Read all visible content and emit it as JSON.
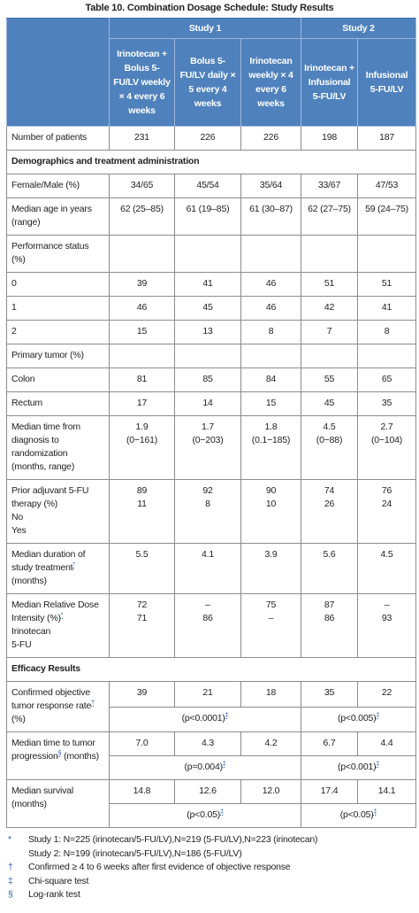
{
  "title": "Table 10. Combination Dosage Schedule: Study Results",
  "table": {
    "group_headers": [
      "Study 1",
      "Study 2"
    ],
    "column_headers": [
      "Irinotecan + Bolus 5-FU/LV weekly × 4 every 6 weeks",
      "Bolus 5-FU/LV daily × 5 every 4 weeks",
      "Irinotecan weekly × 4 every 6 weeks",
      "Irinotecan + Infusional 5-FU/LV",
      "Infusional 5-FU/LV"
    ],
    "rows": [
      {
        "label": "Number of patients",
        "cells": [
          "231",
          "226",
          "226",
          "198",
          "187"
        ]
      },
      {
        "section": "Demographics and treatment administration"
      },
      {
        "label": "Female/Male (%)",
        "cells": [
          "34/65",
          "45/54",
          "35/64",
          "33/67",
          "47/53"
        ]
      },
      {
        "label": "Median age in years (range)",
        "cells": [
          "62 (25–85)",
          "61 (19–85)",
          "61 (30–87)",
          "62 (27–75)",
          "59 (24–75)"
        ]
      },
      {
        "label": "Performance status (%)",
        "cells": [
          "",
          "",
          "",
          "",
          ""
        ]
      },
      {
        "label": "0",
        "cells": [
          "39",
          "41",
          "46",
          "51",
          "51"
        ]
      },
      {
        "label": "1",
        "cells": [
          "46",
          "45",
          "46",
          "42",
          "41"
        ]
      },
      {
        "label": "2",
        "cells": [
          "15",
          "13",
          "8",
          "7",
          "8"
        ]
      },
      {
        "label": "Primary tumor (%)",
        "cells": [
          "",
          "",
          "",
          "",
          ""
        ]
      },
      {
        "label": "Colon",
        "cells": [
          "81",
          "85",
          "84",
          "55",
          "65"
        ]
      },
      {
        "label": "Rectum",
        "cells": [
          "17",
          "14",
          "15",
          "45",
          "35"
        ]
      },
      {
        "label": "Median time from diagnosis to randomization (months, range)",
        "cells": [
          [
            "1.9",
            "(0−161)"
          ],
          [
            "1.7",
            "(0−203)"
          ],
          [
            "1.8",
            "(0.1−185)"
          ],
          [
            "4.5",
            "(0−88)"
          ],
          [
            "2.7",
            "(0−104)"
          ]
        ]
      },
      {
        "label": "Prior adjuvant 5-FU therapy (%)",
        "sublabels": [
          "No",
          "Yes"
        ],
        "cells": [
          [
            "89",
            "11"
          ],
          [
            "92",
            "8"
          ],
          [
            "90",
            "10"
          ],
          [
            "74",
            "26"
          ],
          [
            "76",
            "24"
          ]
        ]
      },
      {
        "label": "Median duration of study treatment",
        "note": "*",
        "label_suffix": "(months)",
        "cells": [
          "5.5",
          "4.1",
          "3.9",
          "5.6",
          "4.5"
        ]
      },
      {
        "label": "Median Relative Dose Intensity (%)",
        "note": "*",
        "sublabels": [
          "Irinotecan",
          "5-FU"
        ],
        "cells": [
          [
            "72",
            "71"
          ],
          [
            "–",
            "86"
          ],
          [
            "75",
            "–"
          ],
          [
            "87",
            "86"
          ],
          [
            "–",
            "93"
          ]
        ]
      },
      {
        "section": "Efficacy Results"
      },
      {
        "label": "Confirmed objective tumor response rate",
        "note": "†",
        "label_suffix": "(%)",
        "cells": [
          "39",
          "21",
          "18",
          "35",
          "22"
        ],
        "p_values": [
          {
            "text": "(p<0.0001)",
            "note": "‡"
          },
          {
            "text": "(p<0.005)",
            "note": "‡"
          }
        ]
      },
      {
        "label": "Median time to tumor progression",
        "note": "§",
        "label_suffix": "(months)",
        "cells": [
          "7.0",
          "4.3",
          "4.2",
          "6.7",
          "4.4"
        ],
        "p_values": [
          {
            "text": "(p=0.004)",
            "note": "‡"
          },
          {
            "text": "(p<0.001)",
            "note": "‡"
          }
        ]
      },
      {
        "label": "Median survival (months)",
        "cells": [
          "14.8",
          "12.6",
          "12.0",
          "17.4",
          "14.1"
        ],
        "p_values": [
          {
            "text": "(p<0.05)",
            "note": "‡"
          },
          {
            "text": "(p<0.05)",
            "note": "‡"
          }
        ]
      }
    ]
  },
  "footnotes": [
    {
      "symbol": "*",
      "lines": [
        "Study 1: N=225 (irinotecan/5-FU/LV),N=219 (5-FU/LV),N=223 (irinotecan)",
        "Study 2: N=199 (irinotecan/5-FU/LV),N=186 (5-FU/LV)"
      ]
    },
    {
      "symbol": "†",
      "lines": [
        "Confirmed ≥ 4 to 6 weeks after first evidence of objective response"
      ]
    },
    {
      "symbol": "‡",
      "lines": [
        "Chi-square test"
      ]
    },
    {
      "symbol": "§",
      "lines": [
        "Log-rank test"
      ]
    }
  ]
}
